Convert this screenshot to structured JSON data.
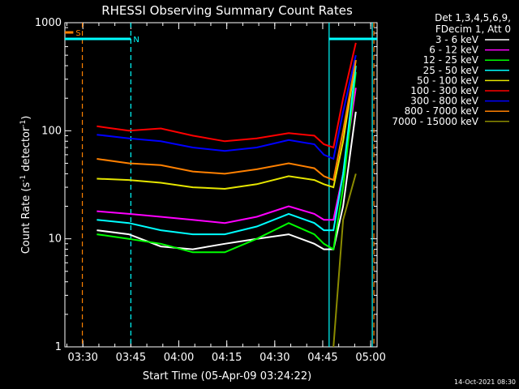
{
  "chart_data": {
    "type": "line",
    "title": "RHESSI Observing Summary Count Rates",
    "xlabel": "Start Time (05-Apr-09 03:24:22)",
    "ylabel_main": "Count Rate (s",
    "ylabel_sup1": "-1",
    "ylabel_mid": " detector",
    "ylabel_sup2": "-1",
    "ylabel_end": ")",
    "yscale": "log",
    "xlim": [
      "03:24:22",
      "05:02:00"
    ],
    "ylim": [
      1,
      1000
    ],
    "x_ticks": [
      "03:30",
      "03:45",
      "04:00",
      "04:15",
      "04:30",
      "04:45",
      "05:00"
    ],
    "y_ticks": [
      "1",
      "10",
      "100",
      "1000"
    ],
    "legend_header": [
      "Det 1,3,4,5,6,9,",
      "FDecim 1, Att 0"
    ],
    "legend_position": "right",
    "flags": [
      {
        "label": "S",
        "color": "#ff8000",
        "start": "03:24:22",
        "end": "03:27:00"
      },
      {
        "label": "N",
        "color": "#00ffff",
        "start": "03:24:22",
        "end": "03:45:00"
      },
      {
        "label": "",
        "color": "#00ffff",
        "start": "04:47:00",
        "end": "05:02:00"
      }
    ],
    "vlines": [
      {
        "time": "03:29:50",
        "color": "#ff8000",
        "style": "dashed"
      },
      {
        "time": "03:45:00",
        "color": "#00ffff",
        "style": "dashed"
      },
      {
        "time": "04:47:00",
        "color": "#00ffff",
        "style": "solid"
      },
      {
        "time": "05:00:30",
        "color": "#00ffff",
        "style": "solid"
      },
      {
        "time": "05:01:00",
        "color": "#ff8000",
        "style": "dashed"
      }
    ],
    "x_minutes": [
      0,
      10,
      20,
      30,
      40,
      50,
      60,
      70,
      78,
      81,
      84,
      87,
      91
    ],
    "series": [
      {
        "name": "3 - 6 keV",
        "color": "#ffffff",
        "values": [
          null,
          12,
          11,
          8.5,
          8,
          9,
          10,
          11,
          9,
          8,
          8,
          20,
          150
        ]
      },
      {
        "name": "6 - 12 keV",
        "color": "#ff00ff",
        "values": [
          null,
          18,
          17,
          16,
          15,
          14,
          16,
          20,
          17,
          15,
          15,
          40,
          250
        ]
      },
      {
        "name": "12 - 25 keV",
        "color": "#00ff00",
        "values": [
          null,
          11,
          10,
          9,
          7.5,
          7.5,
          10,
          14,
          11,
          9,
          8,
          30,
          350
        ]
      },
      {
        "name": "25 - 50 keV",
        "color": "#00ffff",
        "values": [
          null,
          15,
          14,
          12,
          11,
          11,
          13,
          17,
          14,
          12,
          12,
          40,
          400
        ]
      },
      {
        "name": "50 - 100 keV",
        "color": "#e6e600",
        "values": [
          null,
          36,
          35,
          33,
          30,
          29,
          32,
          38,
          35,
          32,
          30,
          80,
          450
        ]
      },
      {
        "name": "100 - 300 keV",
        "color": "#ff0000",
        "values": [
          null,
          110,
          100,
          105,
          90,
          80,
          85,
          95,
          90,
          75,
          70,
          200,
          650
        ]
      },
      {
        "name": "300 - 800 keV",
        "color": "#0000ff",
        "values": [
          null,
          92,
          85,
          80,
          70,
          65,
          70,
          82,
          75,
          60,
          55,
          150,
          500
        ]
      },
      {
        "name": "800 - 7000 keV",
        "color": "#ff8000",
        "values": [
          null,
          55,
          50,
          48,
          42,
          40,
          44,
          50,
          45,
          38,
          35,
          100,
          450
        ]
      },
      {
        "name": "7000 - 15000 keV",
        "color": "#8b8b00",
        "values": [
          null,
          null,
          null,
          null,
          null,
          null,
          null,
          null,
          null,
          null,
          1,
          15,
          40
        ]
      }
    ]
  },
  "footer": {
    "timestamp": "14-Oct-2021 08:30"
  }
}
